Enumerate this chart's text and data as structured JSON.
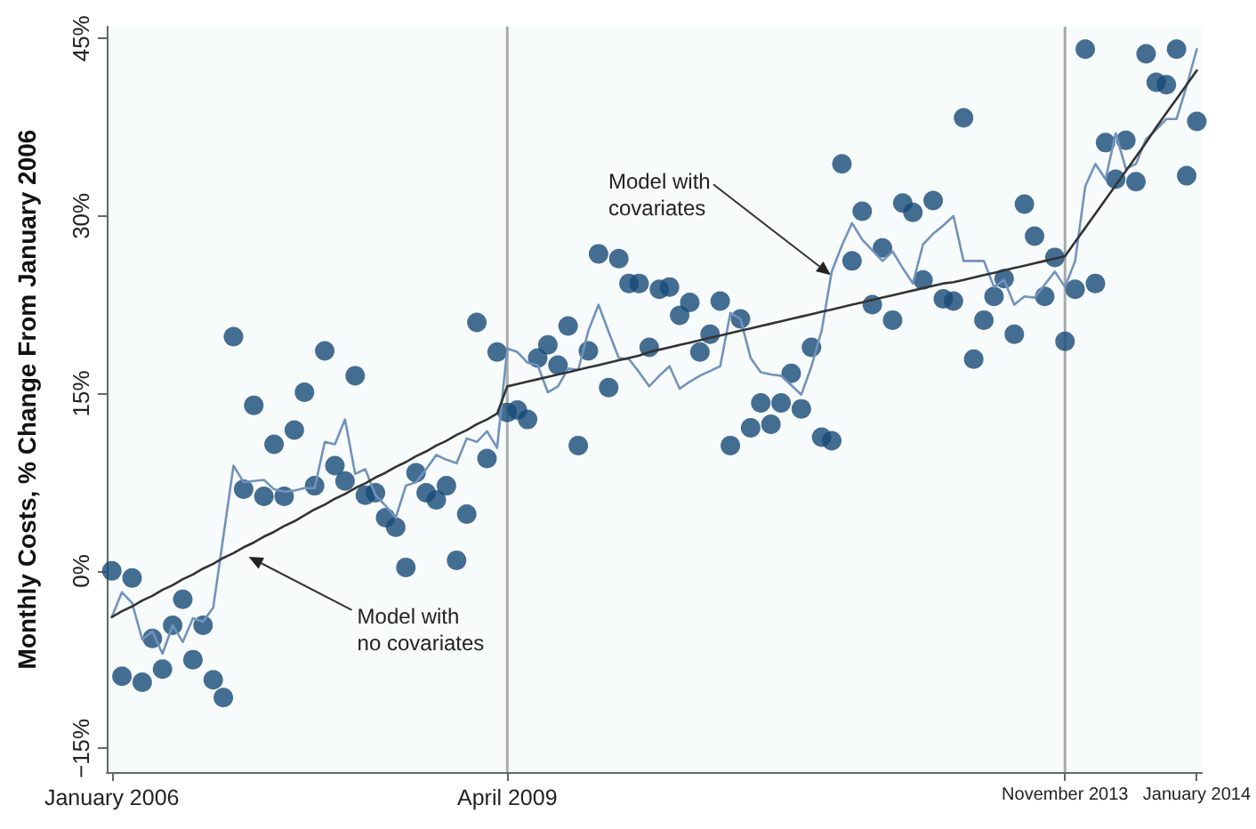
{
  "chart_data": {
    "type": "scatter",
    "ylabel": "Monthly Costs, % Change From January 2006",
    "categories": [
      "January 2006",
      null,
      null,
      null,
      null,
      null,
      null,
      null,
      null,
      null,
      null,
      null,
      null,
      null,
      null,
      null,
      null,
      null,
      null,
      null,
      null,
      null,
      null,
      null,
      null,
      null,
      null,
      null,
      null,
      null,
      null,
      null,
      null,
      null,
      null,
      null,
      null,
      null,
      null,
      "April 2009",
      null,
      null,
      null,
      null,
      null,
      null,
      null,
      null,
      null,
      null,
      null,
      null,
      null,
      null,
      null,
      null,
      null,
      null,
      null,
      null,
      null,
      null,
      null,
      null,
      null,
      null,
      null,
      null,
      null,
      null,
      null,
      null,
      null,
      null,
      null,
      null,
      null,
      null,
      null,
      null,
      null,
      null,
      null,
      null,
      null,
      null,
      null,
      null,
      null,
      null,
      null,
      null,
      null,
      null,
      "November 2013",
      null,
      null,
      null,
      null,
      null,
      null,
      null,
      null,
      null,
      null,
      null,
      null,
      "January 2014"
    ],
    "ylim": [
      -17,
      46
    ],
    "yticks": [
      {
        "value": -15,
        "label": "−15%"
      },
      {
        "value": 0,
        "label": "0%"
      },
      {
        "value": 15,
        "label": "15%"
      },
      {
        "value": 30,
        "label": "30%"
      },
      {
        "value": 45,
        "label": "45%"
      }
    ],
    "grid": false,
    "marker": "circle",
    "ref_lines": [
      {
        "axis": "x",
        "value": "April 2009",
        "color": "#aaaaaa"
      },
      {
        "axis": "x",
        "value": "November 2013",
        "color": "#aaaaaa"
      }
    ],
    "annotations": [
      {
        "text": "Model with no covariates",
        "y": 1.2
      },
      {
        "text": "Model with covariates",
        "y": 25.0
      }
    ],
    "series": [
      {
        "color": "#174a77",
        "values": [
          0.0,
          -8.9,
          -0.6,
          -9.4,
          -5.7,
          -8.3,
          -4.6,
          -2.4,
          -7.5,
          -4.6,
          -9.2,
          -10.7,
          19.8,
          6.9,
          14.0,
          6.3,
          10.7,
          6.3,
          11.9,
          15.1,
          7.2,
          18.6,
          8.9,
          7.6,
          16.5,
          6.4,
          6.6,
          4.5,
          3.7,
          0.3,
          8.3,
          6.6,
          6.0,
          7.2,
          0.9,
          4.8,
          21.0,
          9.5,
          18.5,
          13.4,
          13.6,
          12.8,
          18.0,
          19.1,
          17.4,
          20.7,
          10.6,
          18.6,
          26.8,
          15.5,
          26.4,
          24.3,
          24.3,
          18.9,
          23.8,
          24.0,
          21.6,
          22.7,
          18.5,
          20.0,
          22.8,
          10.6,
          21.3,
          12.1,
          14.2,
          12.4,
          14.2,
          16.7,
          13.7,
          18.9,
          11.3,
          11.0,
          34.4,
          26.2,
          30.4,
          22.5,
          27.3,
          21.2,
          31.1,
          30.3,
          24.6,
          31.3,
          23.0,
          22.8,
          38.3,
          17.9,
          21.2,
          23.2,
          24.7,
          20.0,
          31.0,
          28.3,
          23.2,
          26.5,
          19.4,
          23.8,
          44.1,
          24.3,
          36.2,
          33.1,
          36.4,
          32.9,
          43.7,
          41.3,
          41.1,
          44.1,
          33.4,
          38.0
        ]
      },
      {
        "type": "line",
        "color": "#7193bb",
        "marker": "none",
        "line_style": "solid",
        "values": [
          -3.9,
          -1.8,
          -2.7,
          -5.8,
          -5.1,
          -7.0,
          -4.6,
          -6.0,
          -4.0,
          -4.3,
          -3.1,
          2.9,
          8.9,
          7.5,
          7.6,
          7.7,
          6.9,
          6.7,
          6.8,
          7.0,
          7.0,
          10.9,
          10.7,
          12.8,
          8.2,
          8.6,
          6.4,
          5.5,
          4.5,
          7.2,
          7.5,
          8.6,
          9.8,
          9.4,
          9.1,
          11.2,
          10.9,
          11.8,
          10.4,
          18.8,
          18.5,
          17.6,
          17.4,
          15.1,
          15.6,
          17.1,
          17.0,
          20.3,
          22.5,
          20.2,
          18.0,
          17.9,
          16.8,
          15.6,
          16.5,
          17.3,
          15.4,
          16.0,
          16.5,
          16.9,
          17.3,
          21.8,
          21.3,
          18.0,
          16.8,
          16.6,
          16.5,
          15.7,
          14.9,
          17.3,
          20.3,
          25.3,
          27.5,
          29.4,
          28.0,
          27.1,
          26.2,
          27.0,
          25.6,
          24.3,
          27.6,
          28.5,
          29.2,
          30.0,
          26.2,
          26.2,
          26.2,
          24.0,
          24.6,
          22.5,
          23.2,
          23.1,
          24.2,
          25.3,
          24.0,
          26.2,
          32.5,
          34.4,
          33.1,
          37.0,
          34.0,
          34.4,
          36.5,
          37.3,
          38.2,
          38.2,
          41.0,
          44.1
        ]
      },
      {
        "type": "line",
        "color": "#333333",
        "marker": "none",
        "line_style": "solid",
        "values": [
          -3.9,
          -3.4,
          -3.0,
          -2.5,
          -2.1,
          -1.6,
          -1.2,
          -0.7,
          -0.3,
          0.2,
          0.6,
          1.1,
          1.5,
          2.0,
          2.4,
          2.9,
          3.3,
          3.8,
          4.2,
          4.7,
          5.2,
          5.6,
          6.1,
          6.5,
          7.0,
          7.4,
          7.9,
          8.3,
          8.8,
          9.2,
          9.7,
          10.1,
          10.6,
          11.0,
          11.5,
          11.9,
          12.4,
          12.8,
          13.3,
          15.6,
          15.8,
          16.0,
          16.2,
          16.4,
          16.6,
          16.8,
          17.0,
          17.2,
          17.4,
          17.6,
          17.8,
          18.0,
          18.2,
          18.5,
          18.7,
          18.9,
          19.1,
          19.3,
          19.5,
          19.7,
          19.9,
          20.1,
          20.3,
          20.5,
          20.7,
          20.9,
          21.1,
          21.3,
          21.5,
          21.7,
          21.9,
          22.1,
          22.3,
          22.5,
          22.7,
          22.9,
          23.1,
          23.3,
          23.5,
          23.7,
          23.9,
          24.1,
          24.3,
          24.4,
          24.6,
          24.8,
          25.0,
          25.2,
          25.4,
          25.6,
          25.8,
          26.0,
          26.2,
          26.4,
          26.6,
          27.8,
          29.0,
          30.2,
          31.4,
          32.6,
          33.8,
          35.0,
          36.2,
          37.5,
          38.7,
          39.9,
          41.1,
          42.3
        ]
      }
    ]
  }
}
